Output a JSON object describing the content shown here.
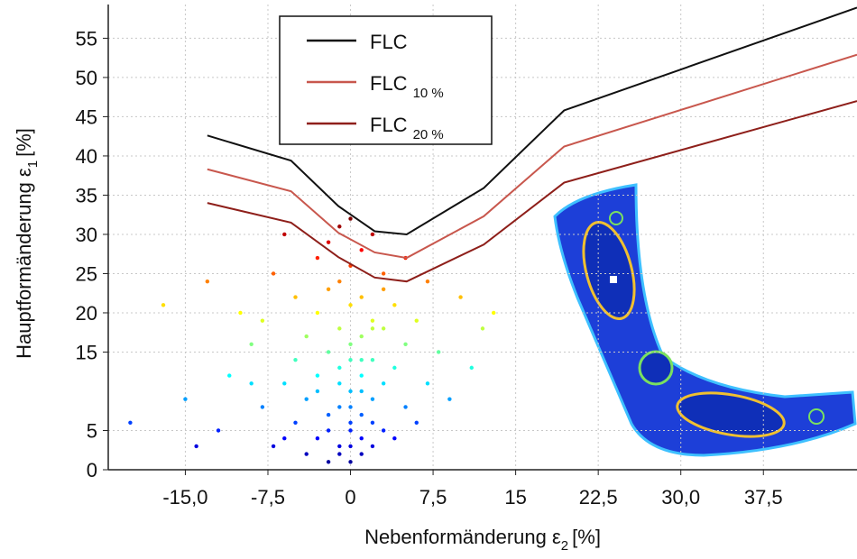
{
  "chart_data": {
    "type": "line",
    "xlabel": {
      "text": "Nebenformänderung ε",
      "sub": "2",
      "unit": "[%]"
    },
    "ylabel": {
      "text": "Hauptformänderung ε",
      "sub": "1",
      "unit": "[%]"
    },
    "xlim": [
      -22,
      46
    ],
    "ylim": [
      0,
      59.3
    ],
    "xticks": [
      {
        "value": -15,
        "label": "-15,0"
      },
      {
        "value": -7.5,
        "label": "-7,5"
      },
      0,
      {
        "value": 7.5,
        "label": "7,5"
      },
      15,
      {
        "value": 22.5,
        "label": "22,5"
      },
      {
        "value": 30,
        "label": "30,0"
      },
      {
        "value": 37.5,
        "label": "37,5"
      }
    ],
    "yticks": [
      0,
      5,
      15,
      20,
      25,
      30,
      35,
      40,
      45,
      50,
      55
    ],
    "grid": true,
    "series": [
      {
        "name": "FLC",
        "color": "#111111",
        "x": [
          -13,
          -5.4,
          -1.1,
          2.2,
          5.1,
          12.1,
          19.4,
          46
        ],
        "values": [
          42.6,
          39.4,
          33.6,
          30.4,
          30.0,
          35.9,
          45.8,
          58.9
        ]
      },
      {
        "name": "FLC",
        "name_sub": "10 %",
        "color": "#c8574d",
        "x": [
          -13,
          -5.4,
          -1.1,
          2.2,
          5.1,
          12.1,
          19.4,
          46
        ],
        "values": [
          38.3,
          35.5,
          30.2,
          27.7,
          27.0,
          32.3,
          41.2,
          52.9
        ]
      },
      {
        "name": "FLC",
        "name_sub": "20 %",
        "color": "#8e1f1a",
        "x": [
          -13,
          -5.4,
          -1.1,
          2.2,
          5.1,
          12.1,
          19.4,
          46
        ],
        "values": [
          34.0,
          31.5,
          27.1,
          24.5,
          24.0,
          28.7,
          36.6,
          47.0
        ]
      }
    ],
    "scatter": {
      "colormap": "jet",
      "crange": [
        0,
        32
      ],
      "x": [
        -20,
        -17,
        -15,
        -13,
        -12,
        -11,
        -10,
        -9,
        -8,
        -8,
        -7,
        -7,
        -6,
        -6,
        -5,
        -5,
        -5,
        -4,
        -4,
        -4,
        -3,
        -3,
        -3,
        -3,
        -2,
        -2,
        -2,
        -2,
        -2,
        -1,
        -1,
        -1,
        -1,
        -1,
        -1,
        0,
        0,
        0,
        0,
        0,
        0,
        0,
        1,
        1,
        1,
        1,
        1,
        1,
        2,
        2,
        2,
        2,
        2,
        3,
        3,
        3,
        3,
        4,
        4,
        4,
        5,
        5,
        5,
        6,
        6,
        7,
        7,
        8,
        9,
        10,
        11,
        12,
        13,
        -14,
        -9,
        -6,
        -3,
        1,
        2,
        3,
        -1,
        0,
        0,
        1,
        -2,
        0,
        1,
        -1,
        0,
        2
      ],
      "y": [
        6,
        21,
        9,
        24,
        5,
        12,
        20,
        16,
        8,
        19,
        3,
        25,
        11,
        30,
        6,
        14,
        22,
        2,
        9,
        17,
        4,
        12,
        20,
        27,
        1,
        7,
        15,
        23,
        29,
        3,
        8,
        13,
        18,
        24,
        31,
        1,
        5,
        10,
        16,
        21,
        26,
        32,
        2,
        7,
        12,
        17,
        22,
        28,
        3,
        9,
        14,
        19,
        30,
        5,
        11,
        18,
        25,
        4,
        13,
        21,
        8,
        16,
        27,
        6,
        19,
        11,
        24,
        15,
        9,
        22,
        13,
        18,
        20,
        3,
        11,
        4,
        10,
        14,
        18,
        23,
        2,
        3,
        6,
        4,
        5,
        8,
        10,
        11,
        14,
        6
      ]
    }
  }
}
